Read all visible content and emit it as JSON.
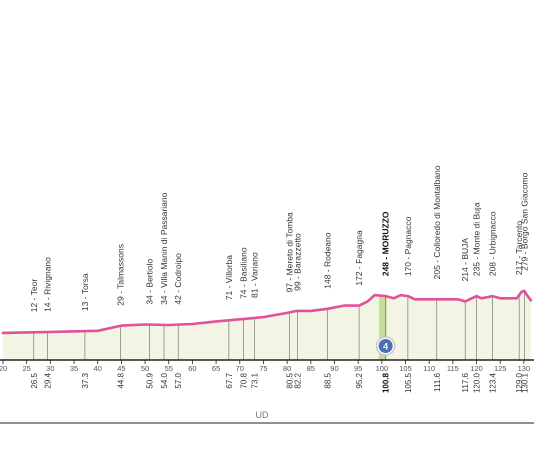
{
  "chart_data": {
    "type": "area",
    "title": "",
    "xlabel": "",
    "ylabel": "",
    "xlim": [
      20,
      131.5
    ],
    "x_ticks": [
      20,
      25,
      30,
      35,
      40,
      45,
      50,
      55,
      60,
      65,
      70,
      75,
      80,
      85,
      90,
      95,
      100,
      105,
      110,
      115,
      120,
      125,
      130
    ],
    "profile": {
      "x": [
        20,
        30,
        40,
        45,
        50,
        55,
        60,
        65,
        70,
        75,
        80,
        82,
        85,
        88.5,
        92,
        95.2,
        97,
        98.5,
        100.8,
        102.5,
        104,
        105.5,
        107,
        110,
        114,
        116,
        117.6,
        119,
        120,
        121,
        123.4,
        125,
        128.5,
        129.5,
        130.1,
        130.8,
        131.5
      ],
      "y": [
        12,
        13,
        14,
        19,
        20,
        19.5,
        20.5,
        23,
        25,
        27,
        31,
        33,
        33,
        35,
        38,
        38,
        42,
        48,
        47,
        45,
        48,
        47,
        44,
        44,
        44,
        44,
        42,
        45,
        47,
        45,
        47,
        45,
        45,
        51,
        52,
        47,
        43
      ]
    },
    "places": [
      {
        "name": "Teor",
        "alt": "12",
        "km": "26.5",
        "x": 26.5
      },
      {
        "name": "Rivignano",
        "alt": "14",
        "km": "29.4",
        "x": 29.4
      },
      {
        "name": "Torsa",
        "alt": "13",
        "km": "37.3",
        "x": 37.3
      },
      {
        "name": "Talmassons",
        "alt": "29",
        "km": "44.8",
        "x": 44.8
      },
      {
        "name": "Bertiolo",
        "alt": "34",
        "km": "50.9",
        "x": 50.9
      },
      {
        "name": "Villa Manin di Passariano",
        "alt": "34",
        "km": "54.0",
        "x": 54.0
      },
      {
        "name": "Codroipo",
        "alt": "42",
        "km": "57.0",
        "x": 57.0
      },
      {
        "name": "Villorba",
        "alt": "71",
        "km": "67.7",
        "x": 67.7
      },
      {
        "name": "Basiliano",
        "alt": "74",
        "km": "70.8",
        "x": 70.8
      },
      {
        "name": "Variano",
        "alt": "81",
        "km": "73.1",
        "x": 73.1
      },
      {
        "name": "Mereto di Tomba",
        "alt": "97",
        "km": "80.5",
        "x": 80.5
      },
      {
        "name": "Barazzetto",
        "alt": "99",
        "km": "82.2",
        "x": 82.2
      },
      {
        "name": "Rodeano",
        "alt": "148",
        "km": "88.5",
        "x": 88.5
      },
      {
        "name": "Fagagna",
        "alt": "172",
        "km": "95.2",
        "x": 95.2
      },
      {
        "name": "MORUZZO",
        "alt": "248",
        "km": "100.8",
        "x": 100.8,
        "bold": true
      },
      {
        "name": "Pagnacco",
        "alt": "170",
        "km": "105.5",
        "x": 105.5
      },
      {
        "name": "Colloredo di Montalbano",
        "alt": "205",
        "km": "111.6",
        "x": 111.6
      },
      {
        "name": "BUJA",
        "alt": "214",
        "km": "117.6",
        "x": 117.6
      },
      {
        "name": "Monte di Buja",
        "alt": "235",
        "km": "120.0",
        "x": 120.0
      },
      {
        "name": "Urbignacco",
        "alt": "208",
        "km": "123.4",
        "x": 123.4
      },
      {
        "name": "Tarcento",
        "alt": "217",
        "km": "129.0",
        "x": 129.0
      },
      {
        "name": "Borgo San Giacomo",
        "alt": "279",
        "km": "130.1",
        "x": 130.1
      }
    ],
    "climb_marker": {
      "km": 100.8,
      "category": "4"
    },
    "climb_segment": [
      99.4,
      101.0
    ],
    "province_label": "UD",
    "colors": {
      "profile_line": "#e0529b",
      "profile_fill": "#f2f4e4",
      "climb_fill": "#c6dc9a",
      "marker": "#4a6fb5",
      "axis": "#222222",
      "leader": "#666666"
    }
  }
}
